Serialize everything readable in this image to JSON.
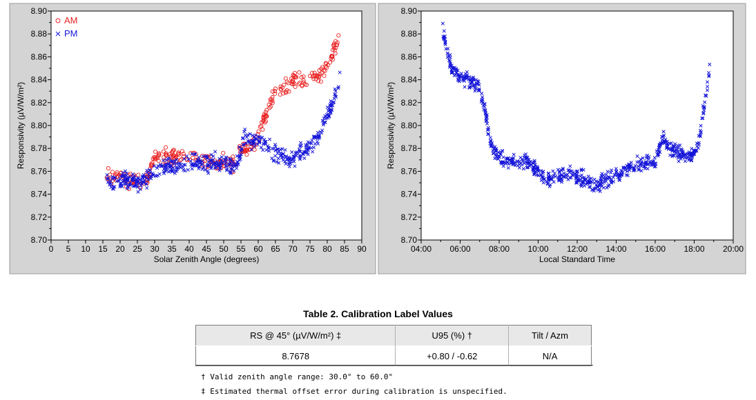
{
  "colors": {
    "am": "#e82020",
    "pm": "#1414d8",
    "plot_bg": "#ffffff",
    "panel_bg": "#d4d4d4"
  },
  "chart_data": [
    {
      "type": "scatter",
      "xlabel": "Solar Zenith Angle (degrees)",
      "ylabel": "Responsivity (µV/W/m²)",
      "xlim": [
        0,
        90
      ],
      "ylim": [
        8.7,
        8.9
      ],
      "x_ticks": [
        "0",
        "5",
        "10",
        "15",
        "20",
        "25",
        "30",
        "35",
        "40",
        "45",
        "50",
        "55",
        "60",
        "65",
        "70",
        "75",
        "80",
        "85",
        "90"
      ],
      "y_ticks": [
        "8.70",
        "8.72",
        "8.74",
        "8.76",
        "8.78",
        "8.80",
        "8.82",
        "8.84",
        "8.86",
        "8.88",
        "8.90"
      ],
      "legend": [
        "AM",
        "PM"
      ],
      "legend_position": "top-left",
      "series": [
        {
          "name": "AM",
          "marker": "circle",
          "anchors": [
            [
              16,
              8.758
            ],
            [
              18,
              8.755
            ],
            [
              20,
              8.757
            ],
            [
              22,
              8.752
            ],
            [
              24,
              8.752
            ],
            [
              26,
              8.749
            ],
            [
              28,
              8.755
            ],
            [
              30,
              8.77
            ],
            [
              32,
              8.774
            ],
            [
              35,
              8.772
            ],
            [
              38,
              8.772
            ],
            [
              41,
              8.774
            ],
            [
              44,
              8.77
            ],
            [
              47,
              8.768
            ],
            [
              50,
              8.768
            ],
            [
              53,
              8.768
            ],
            [
              55,
              8.779
            ],
            [
              57,
              8.78
            ],
            [
              59,
              8.782
            ],
            [
              61,
              8.8
            ],
            [
              63,
              8.817
            ],
            [
              65,
              8.826
            ],
            [
              67,
              8.833
            ],
            [
              69,
              8.838
            ],
            [
              71,
              8.841
            ],
            [
              73,
              8.839
            ],
            [
              75,
              8.841
            ],
            [
              77,
              8.843
            ],
            [
              79,
              8.848
            ],
            [
              81,
              8.858
            ],
            [
              83,
              8.872
            ],
            [
              84,
              8.888
            ]
          ],
          "spread": 0.01,
          "count": 330
        },
        {
          "name": "PM",
          "marker": "x",
          "anchors": [
            [
              16,
              8.752
            ],
            [
              18,
              8.748
            ],
            [
              20,
              8.752
            ],
            [
              22,
              8.752
            ],
            [
              24,
              8.75
            ],
            [
              26,
              8.75
            ],
            [
              28,
              8.754
            ],
            [
              30,
              8.76
            ],
            [
              33,
              8.762
            ],
            [
              36,
              8.765
            ],
            [
              39,
              8.766
            ],
            [
              42,
              8.768
            ],
            [
              45,
              8.766
            ],
            [
              48,
              8.768
            ],
            [
              51,
              8.766
            ],
            [
              54,
              8.766
            ],
            [
              56,
              8.79
            ],
            [
              58,
              8.785
            ],
            [
              60,
              8.788
            ],
            [
              62,
              8.785
            ],
            [
              64,
              8.778
            ],
            [
              66,
              8.775
            ],
            [
              68,
              8.771
            ],
            [
              70,
              8.768
            ],
            [
              72,
              8.776
            ],
            [
              74,
              8.778
            ],
            [
              76,
              8.786
            ],
            [
              78,
              8.795
            ],
            [
              80,
              8.808
            ],
            [
              82,
              8.823
            ],
            [
              84,
              8.845
            ]
          ],
          "spread": 0.011,
          "count": 520
        }
      ]
    },
    {
      "type": "scatter",
      "xlabel": "Local Standard Time",
      "ylabel": "Responsivity (µV/W/m²)",
      "xlim": [
        4,
        20
      ],
      "ylim": [
        8.7,
        8.9
      ],
      "x_ticks": [
        "04:00",
        "06:00",
        "08:00",
        "10:00",
        "12:00",
        "14:00",
        "16:00",
        "18:00",
        "20:00"
      ],
      "y_ticks": [
        "8.70",
        "8.72",
        "8.74",
        "8.76",
        "8.78",
        "8.80",
        "8.82",
        "8.84",
        "8.86",
        "8.88",
        "8.90"
      ],
      "series": [
        {
          "name": "PM",
          "marker": "x",
          "anchors": [
            [
              5.1,
              8.886
            ],
            [
              5.3,
              8.868
            ],
            [
              5.6,
              8.848
            ],
            [
              6.0,
              8.842
            ],
            [
              6.5,
              8.84
            ],
            [
              6.9,
              8.836
            ],
            [
              7.2,
              8.818
            ],
            [
              7.5,
              8.79
            ],
            [
              7.8,
              8.776
            ],
            [
              8.2,
              8.77
            ],
            [
              8.6,
              8.768
            ],
            [
              9.0,
              8.768
            ],
            [
              9.4,
              8.77
            ],
            [
              9.8,
              8.762
            ],
            [
              10.2,
              8.755
            ],
            [
              10.6,
              8.752
            ],
            [
              11.0,
              8.755
            ],
            [
              11.5,
              8.757
            ],
            [
              12.0,
              8.755
            ],
            [
              12.4,
              8.752
            ],
            [
              12.8,
              8.748
            ],
            [
              13.2,
              8.75
            ],
            [
              13.6,
              8.752
            ],
            [
              14.0,
              8.756
            ],
            [
              14.4,
              8.76
            ],
            [
              14.8,
              8.764
            ],
            [
              15.2,
              8.766
            ],
            [
              15.6,
              8.768
            ],
            [
              16.0,
              8.77
            ],
            [
              16.4,
              8.79
            ],
            [
              16.8,
              8.782
            ],
            [
              17.2,
              8.776
            ],
            [
              17.6,
              8.772
            ],
            [
              18.0,
              8.776
            ],
            [
              18.3,
              8.79
            ],
            [
              18.6,
              8.828
            ],
            [
              18.8,
              8.852
            ]
          ],
          "spread": 0.01,
          "count": 720
        }
      ]
    }
  ],
  "table": {
    "title": "Table 2.  Calibration Label Values",
    "headers": [
      "RS @ 45° (µV/W/m²) ‡",
      "U95 (%) †",
      "Tilt / Azm"
    ],
    "values": [
      "8.7678",
      "+0.80 / -0.62",
      "N/A"
    ]
  },
  "notes": [
    "† Valid zenith angle range:    30.0° to 60.0°",
    "‡ Estimated thermal offset error during calibration is unspecified."
  ]
}
